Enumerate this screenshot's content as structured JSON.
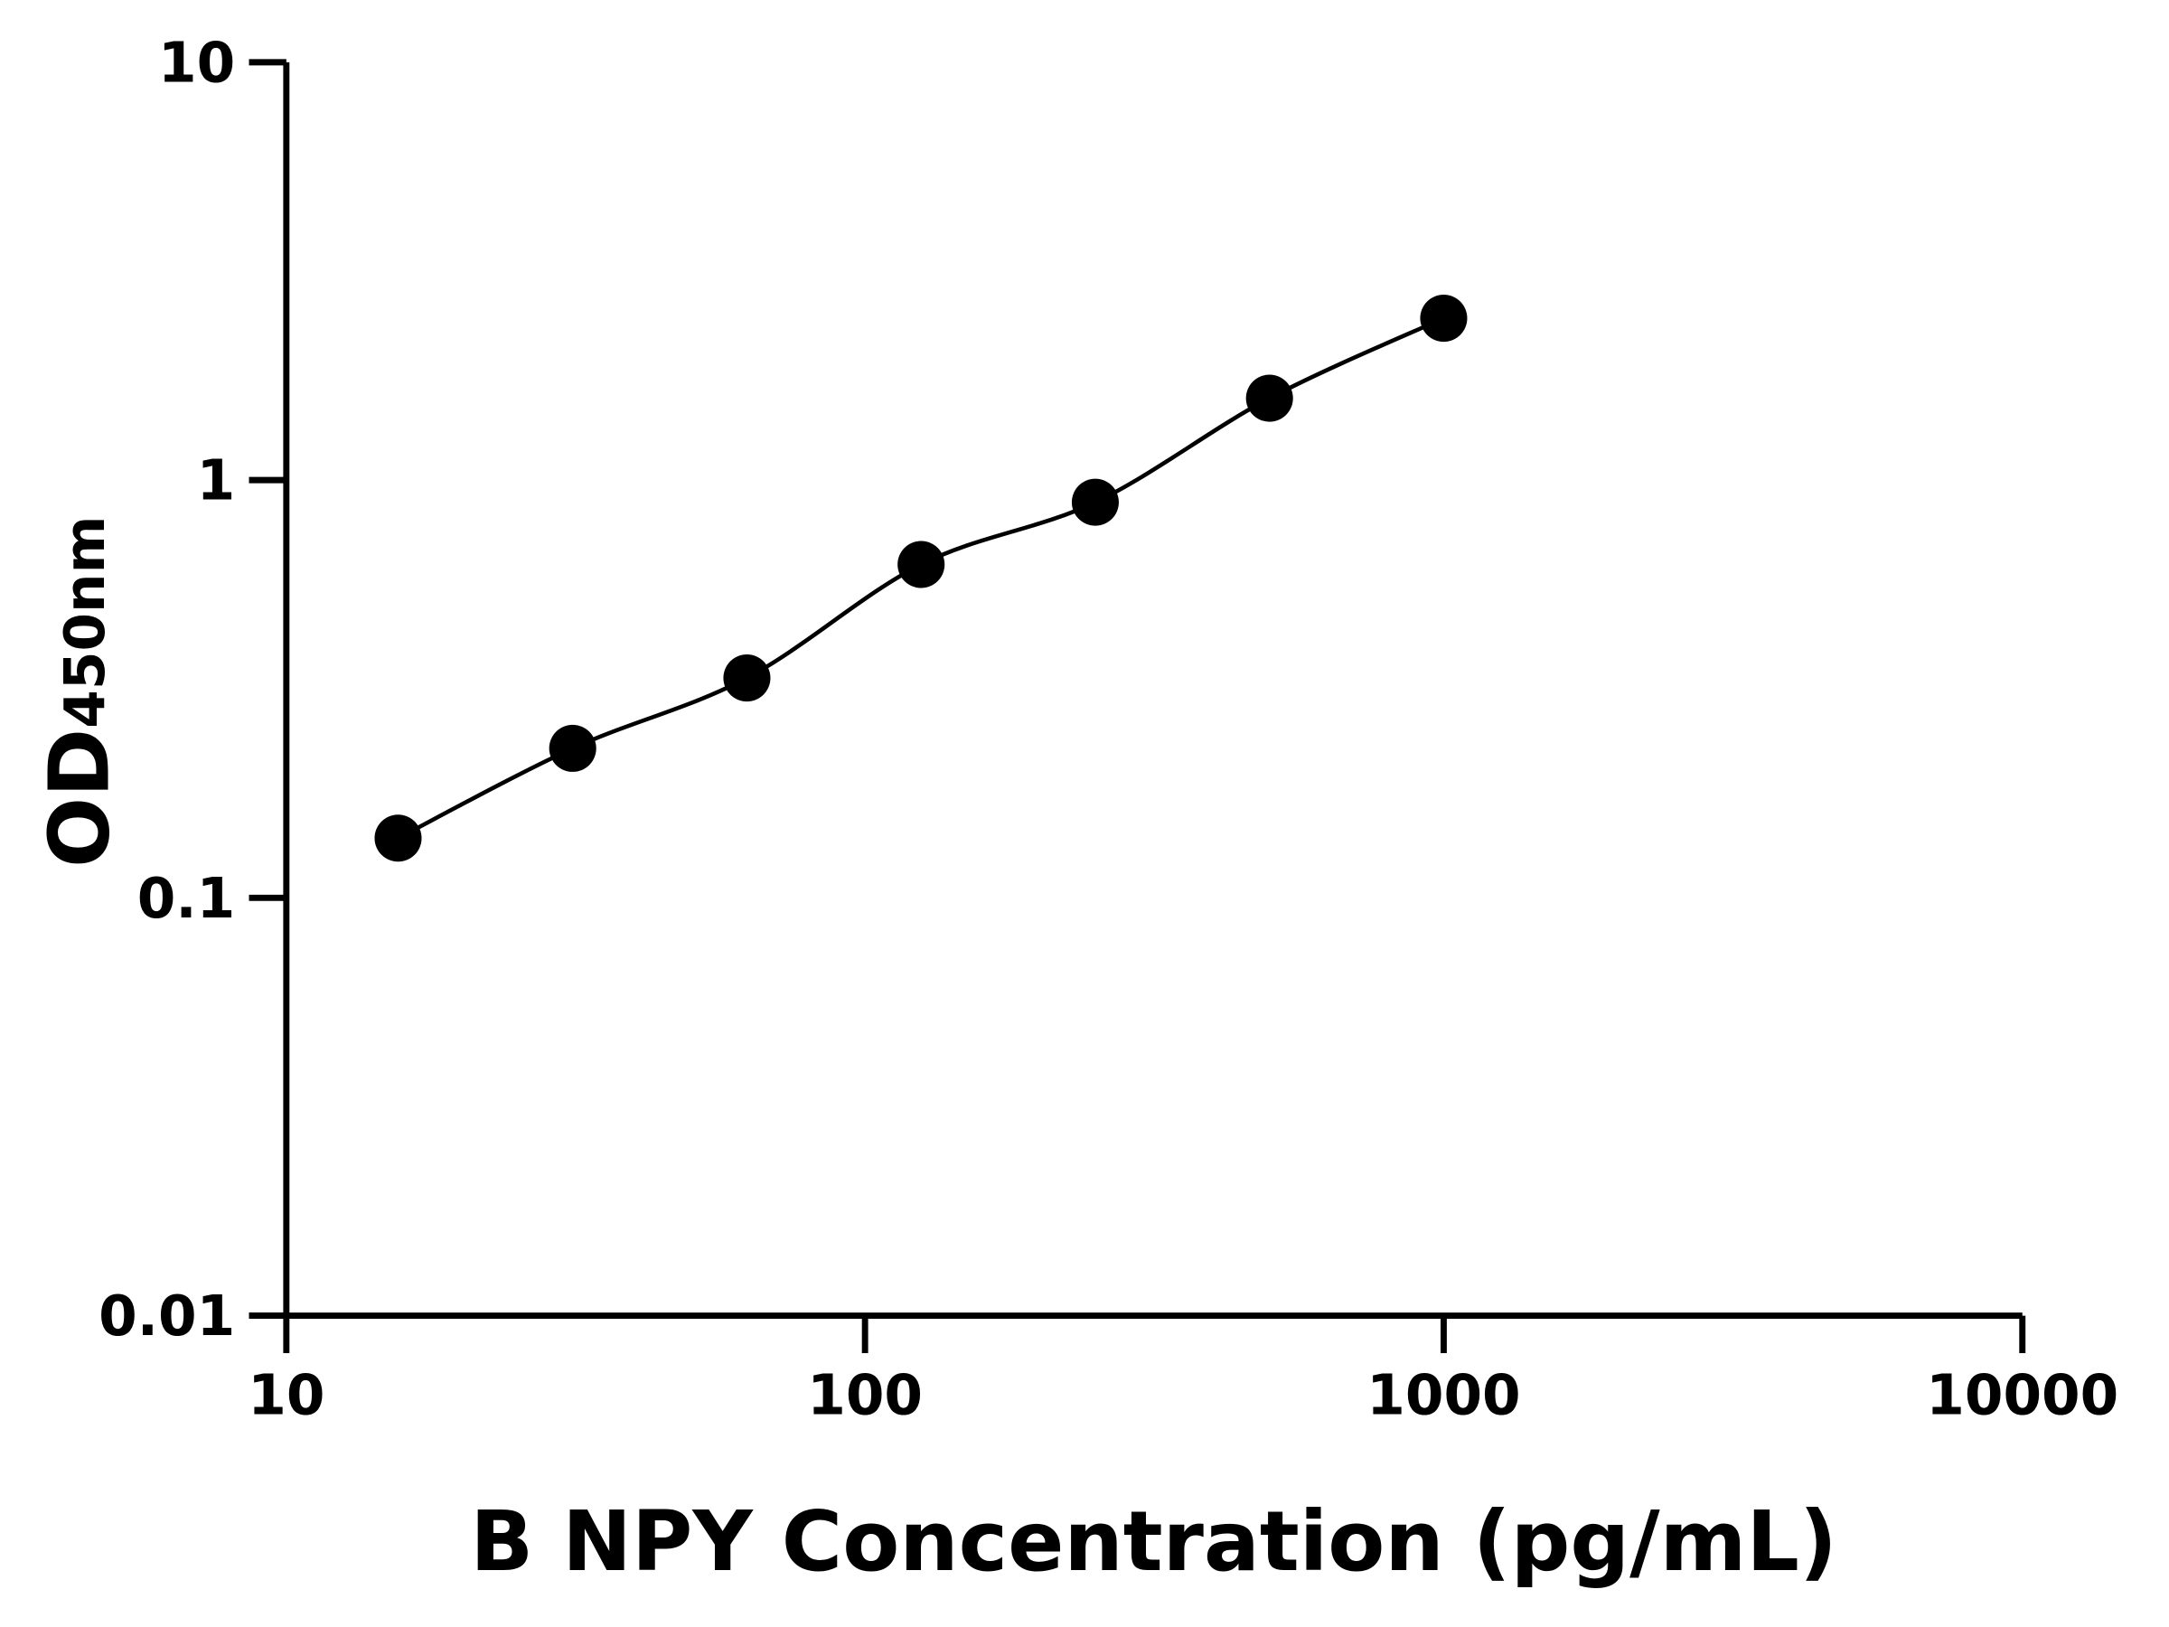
{
  "chart_data": {
    "type": "line",
    "title": "",
    "xlabel": "B NPY Concentration (pg/mL)",
    "ylabel": {
      "main": "OD",
      "subscript": "450nm"
    },
    "xscale": "log",
    "yscale": "log",
    "xlim": [
      10,
      10000
    ],
    "ylim": [
      0.01,
      10
    ],
    "xticks": [
      "10",
      "100",
      "1000",
      "10000"
    ],
    "yticks": [
      "0.01",
      "0.1",
      "1",
      "10"
    ],
    "grid": false,
    "legend": "none",
    "series": [
      {
        "x": [
          15.6,
          31.25,
          62.5,
          125,
          250,
          500,
          1000
        ],
        "y": [
          0.139,
          0.228,
          0.336,
          0.628,
          0.885,
          1.57,
          2.44
        ],
        "marker": "circle",
        "color": "#000000"
      }
    ]
  }
}
